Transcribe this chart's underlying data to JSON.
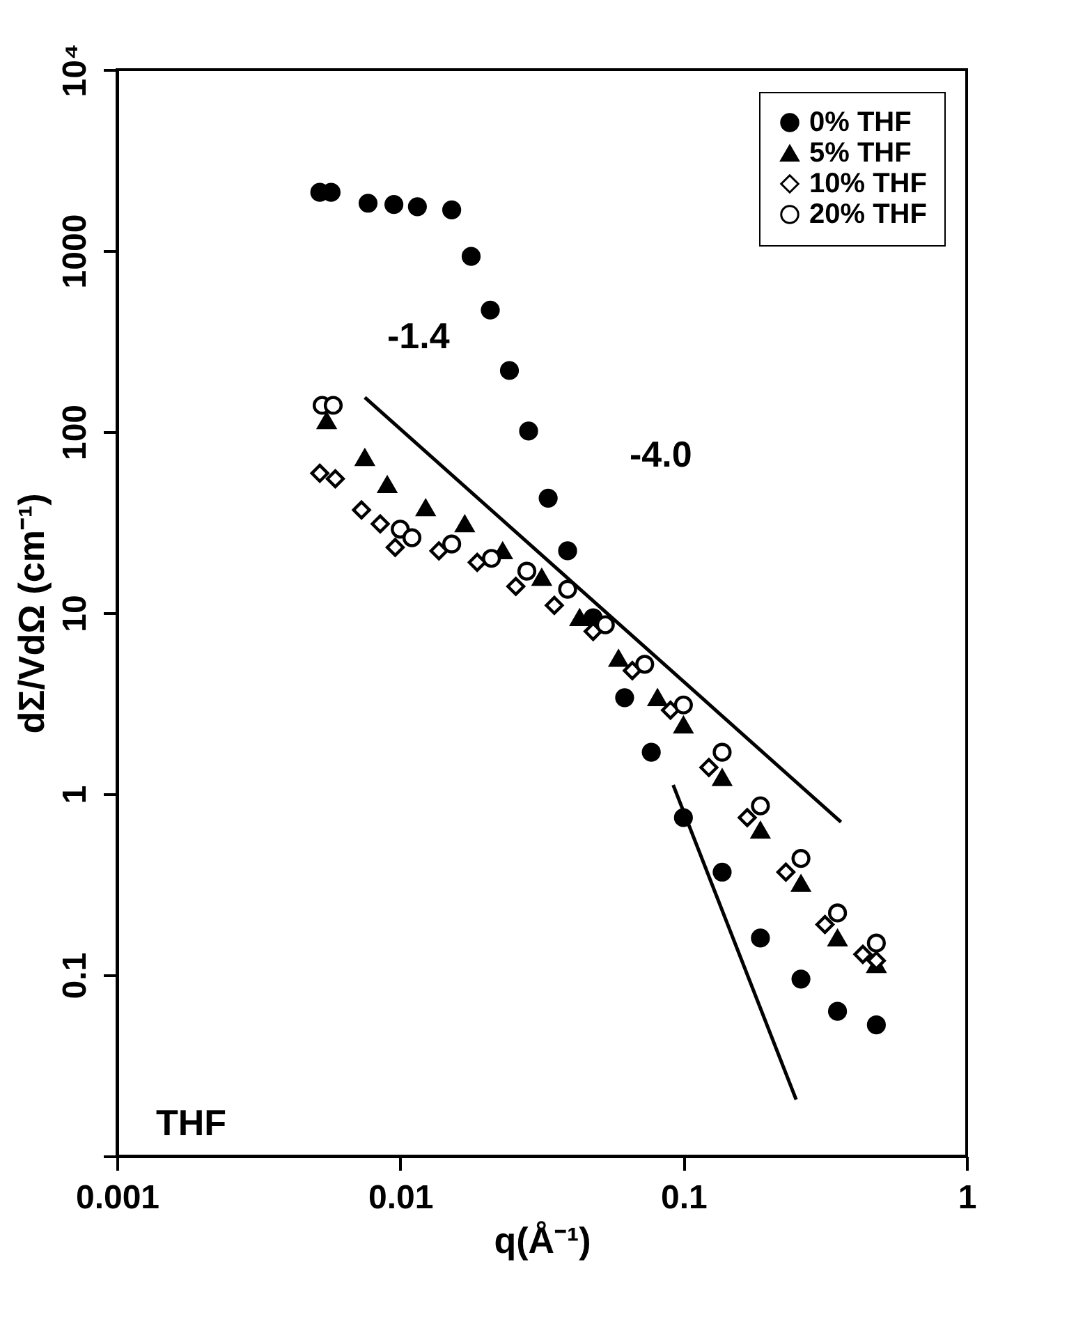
{
  "chart_data": {
    "type": "scatter",
    "xlabel": "q(Å⁻¹)",
    "ylabel": "dΣ/VdΩ (cm⁻¹)",
    "log": "xy",
    "xlim": [
      0.001,
      1
    ],
    "ylim": [
      0.01,
      10000
    ],
    "xticks": [
      0.001,
      0.01,
      0.1,
      1
    ],
    "yticks": [
      {
        "value": 0.01,
        "label": null
      },
      0.1,
      1,
      10,
      100,
      1000,
      {
        "value": 10000,
        "label": "10⁴"
      }
    ],
    "legend": "top right",
    "annotations": [
      "-1.4",
      "-4.0",
      "THF"
    ],
    "series": [
      {
        "name": "0% THF",
        "marker": "circle",
        "color": "#000000",
        "x": [
          0.0052,
          0.0057,
          0.0077,
          0.0095,
          0.0115,
          0.0152,
          0.0178,
          0.0208,
          0.0243,
          0.0284,
          0.0333,
          0.039,
          0.048,
          0.062,
          0.077,
          0.1,
          0.137,
          0.187,
          0.26,
          0.35,
          0.48
        ],
        "values": [
          2100,
          2100,
          1830,
          1800,
          1750,
          1680,
          930,
          470,
          218,
          101,
          43,
          22,
          9.4,
          3.4,
          1.7,
          0.74,
          0.37,
          0.16,
          0.095,
          0.063,
          0.053
        ]
      },
      {
        "name": "5% THF",
        "marker": "triangle",
        "color": "#000000",
        "x": [
          0.0055,
          0.0075,
          0.009,
          0.0123,
          0.0169,
          0.023,
          0.0316,
          0.043,
          0.059,
          0.081,
          0.1,
          0.137,
          0.187,
          0.26,
          0.35,
          0.48
        ],
        "values": [
          115,
          72,
          51,
          38,
          31,
          22,
          15.7,
          9.4,
          5.6,
          3.4,
          2.4,
          1.23,
          0.63,
          0.32,
          0.16,
          0.114
        ]
      },
      {
        "name": "10% THF",
        "marker": "diamond-open",
        "color": "#000000",
        "x": [
          0.0052,
          0.0059,
          0.0073,
          0.0085,
          0.0096,
          0.0137,
          0.0187,
          0.0256,
          0.035,
          0.048,
          0.066,
          0.09,
          0.123,
          0.168,
          0.23,
          0.316,
          0.43,
          0.48
        ],
        "values": [
          59,
          55,
          37,
          31,
          23,
          22,
          19,
          14,
          11,
          7.9,
          4.8,
          2.9,
          1.4,
          0.74,
          0.37,
          0.19,
          0.13,
          0.12
        ]
      },
      {
        "name": "20% THF",
        "marker": "circle-open",
        "color": "#000000",
        "x": [
          0.0053,
          0.0058,
          0.01,
          0.011,
          0.0152,
          0.021,
          0.028,
          0.039,
          0.053,
          0.073,
          0.1,
          0.137,
          0.187,
          0.26,
          0.35,
          0.48
        ],
        "values": [
          140,
          140,
          29,
          26,
          24,
          20,
          17,
          13.5,
          8.6,
          5.2,
          3.1,
          1.7,
          0.86,
          0.44,
          0.22,
          0.15
        ]
      },
      {
        "type": "line",
        "color": "#000000",
        "x": [
          0.0075,
          0.36
        ],
        "values": [
          155,
          0.7
        ]
      },
      {
        "type": "line",
        "color": "#000000",
        "x": [
          0.092,
          0.25
        ],
        "values": [
          1.12,
          0.0205
        ]
      }
    ]
  }
}
